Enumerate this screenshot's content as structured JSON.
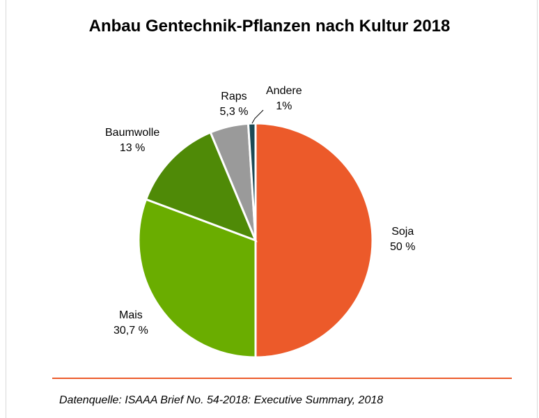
{
  "chart_data": {
    "type": "pie",
    "title": "Anbau Gentechnik-Pflanzen nach Kultur 2018",
    "slices": [
      {
        "name": "Soja",
        "value": 50,
        "label": "50 %",
        "color": "#ec5a2a"
      },
      {
        "name": "Mais",
        "value": 30.7,
        "label": "30,7 %",
        "color": "#6aad00"
      },
      {
        "name": "Baumwolle",
        "value": 13,
        "label": "13 %",
        "color": "#4f8a07"
      },
      {
        "name": "Raps",
        "value": 5.3,
        "label": "5,3 %",
        "color": "#9a9a9a"
      },
      {
        "name": "Andere",
        "value": 1,
        "label": "1%",
        "color": "#1d4a55"
      }
    ],
    "start_angle": "12 o'clock",
    "direction": "clockwise",
    "legend": "none"
  },
  "source": "Datenquelle: ISAAA Brief No. 54-2018: Executive Summary, 2018"
}
